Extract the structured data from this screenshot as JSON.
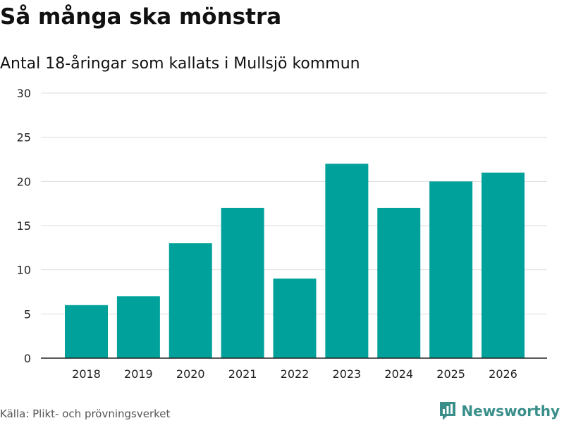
{
  "title": "Så många ska mönstra",
  "subtitle": "Antal 18-åringar som kallats i Mullsjö kommun",
  "source": "Källa: Plikt- och prövningsverket",
  "brand": {
    "name": "Newsworthy",
    "icon": "newsworthy-logo-icon",
    "color": "#3a8f8a"
  },
  "colors": {
    "bar": "#00a19a",
    "grid": "#dddddd",
    "axis": "#222222",
    "tick_text": "#222222"
  },
  "chart_data": {
    "type": "bar",
    "title": "Så många ska mönstra",
    "subtitle": "Antal 18-åringar som kallats i Mullsjö kommun",
    "xlabel": "",
    "ylabel": "",
    "categories": [
      "2018",
      "2019",
      "2020",
      "2021",
      "2022",
      "2023",
      "2024",
      "2025",
      "2026"
    ],
    "values": [
      6,
      7,
      13,
      17,
      9,
      22,
      17,
      20,
      21
    ],
    "ylim": [
      0,
      30
    ],
    "yticks": [
      0,
      5,
      10,
      15,
      20,
      25,
      30
    ],
    "grid": true,
    "legend": "none"
  }
}
